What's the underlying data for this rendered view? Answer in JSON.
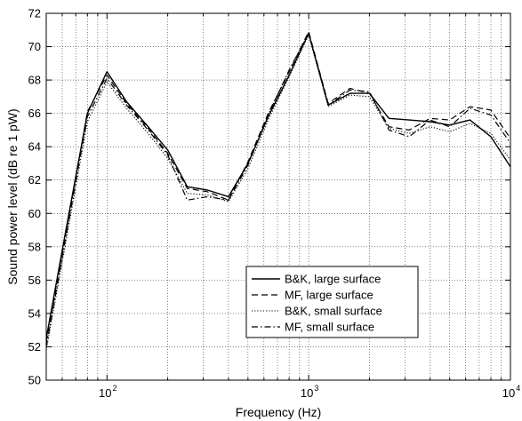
{
  "chart_data": {
    "type": "line",
    "title": "",
    "xlabel": "Frequency (Hz)",
    "ylabel": "Sound power level (dB re 1 pW)",
    "x_scale": "log",
    "xlim": [
      50,
      10000
    ],
    "ylim": [
      50,
      72
    ],
    "grid": "dotted, major and minor",
    "legend_position": "lower-center-right",
    "x_ticks": [
      {
        "value": 100,
        "label": "10",
        "exp": "2"
      },
      {
        "value": 1000,
        "label": "10",
        "exp": "3"
      },
      {
        "value": 10000,
        "label": "10",
        "exp": "4"
      }
    ],
    "y_ticks": [
      50,
      52,
      54,
      56,
      58,
      60,
      62,
      64,
      66,
      68,
      70,
      72
    ],
    "x": [
      50,
      63,
      80,
      100,
      125,
      160,
      200,
      250,
      315,
      400,
      500,
      630,
      800,
      1000,
      1250,
      1600,
      2000,
      2500,
      3150,
      4000,
      5000,
      6300,
      8000,
      10000
    ],
    "series": [
      {
        "name": "B&K, large surface",
        "dash": "solid",
        "values": [
          52.5,
          59.2,
          66.0,
          68.5,
          66.7,
          65.2,
          63.8,
          61.6,
          61.4,
          61.0,
          63.0,
          65.8,
          68.3,
          70.8,
          66.5,
          67.2,
          67.2,
          65.7,
          65.6,
          65.5,
          65.3,
          65.6,
          64.6,
          62.8
        ]
      },
      {
        "name": "MF, large surface",
        "dash": "dashed",
        "values": [
          52.3,
          59.0,
          66.1,
          68.3,
          66.6,
          65.1,
          63.6,
          61.5,
          61.3,
          60.8,
          63.1,
          66.0,
          68.5,
          70.9,
          66.6,
          67.5,
          67.2,
          65.2,
          65.0,
          65.7,
          65.6,
          66.4,
          66.2,
          64.5
        ]
      },
      {
        "name": "B&K, small surface",
        "dash": "dotted",
        "values": [
          51.8,
          58.5,
          65.5,
          67.9,
          66.3,
          64.8,
          63.3,
          61.2,
          61.1,
          60.7,
          62.7,
          65.6,
          68.2,
          70.7,
          66.4,
          67.1,
          67.0,
          65.1,
          64.8,
          65.2,
          64.9,
          65.4,
          64.8,
          63.2
        ]
      },
      {
        "name": "MF, small surface",
        "dash": "dashdot",
        "values": [
          52.0,
          58.8,
          65.8,
          68.1,
          66.5,
          65.0,
          63.5,
          60.8,
          61.0,
          60.8,
          62.9,
          65.9,
          68.6,
          70.8,
          66.5,
          67.4,
          67.3,
          65.0,
          64.6,
          65.6,
          65.2,
          66.3,
          65.9,
          64.2
        ]
      }
    ]
  }
}
